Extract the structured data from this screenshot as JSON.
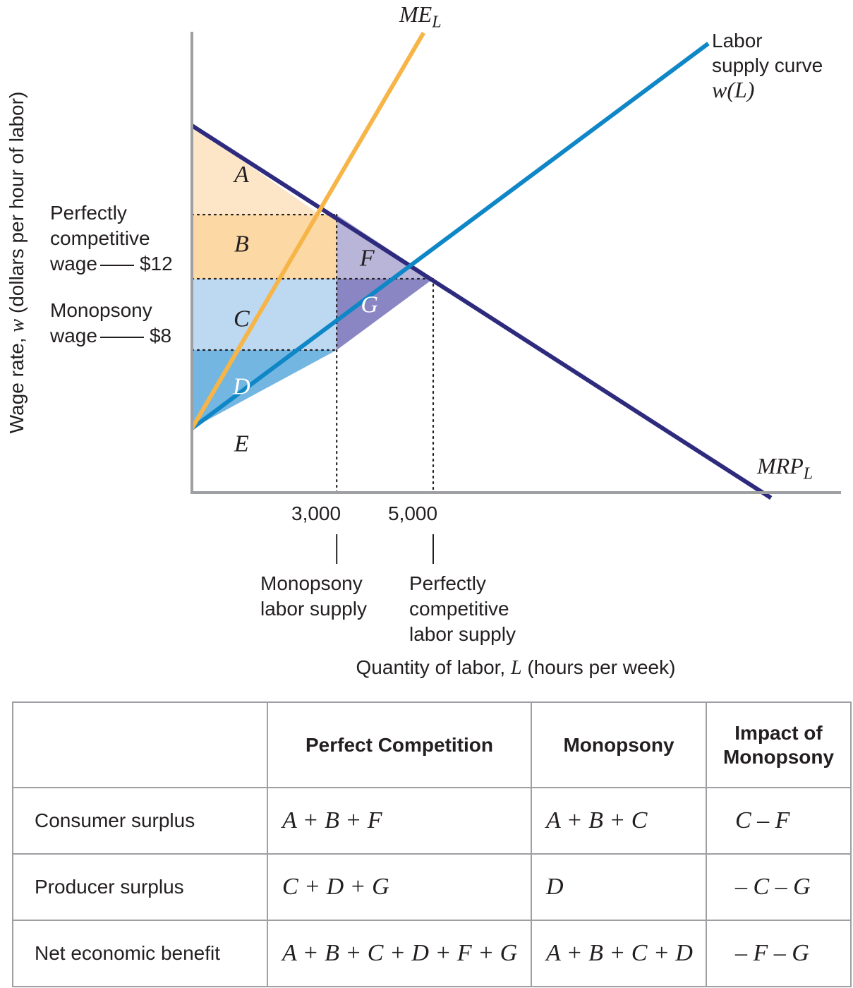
{
  "chart_data": {
    "type": "line",
    "title": "",
    "xlabel": "Quantity of labor, L (hours per week)",
    "ylabel": "Wage rate, w (dollars per hour of labor)",
    "xlabel_parts": {
      "pre": "Quantity of labor, ",
      "var": "L",
      "post": " (hours per week)"
    },
    "ylabel_parts": {
      "pre": "Wage rate, ",
      "var": "w",
      "post": " (dollars per hour of labor)"
    },
    "xlim": [
      0,
      13000
    ],
    "ylim": [
      0,
      20
    ],
    "x_ticks": [
      {
        "value": 3000,
        "label": "3,000",
        "note": [
          "Monopsony",
          "labor supply"
        ]
      },
      {
        "value": 5000,
        "label": "5,000",
        "note": [
          "Perfectly",
          "competitive",
          "labor supply"
        ]
      }
    ],
    "y_ticks": [
      {
        "value": 12,
        "label": "$12",
        "note": [
          "Perfectly",
          "competitive",
          "wage"
        ]
      },
      {
        "value": 8,
        "label": "$8",
        "note": [
          "Monopsony",
          "wage"
        ]
      }
    ],
    "series": [
      {
        "name": "MRP_L",
        "label_main": "MRP",
        "label_sub": "L",
        "color": "#2e2a7e",
        "points": [
          [
            0,
            20.6
          ],
          [
            12000,
            -0.3
          ]
        ]
      },
      {
        "name": "Labor supply curve w(L)",
        "label_lines": [
          "Labor",
          "supply curve"
        ],
        "label_func": "w(L)",
        "color": "#0f87c7",
        "points": [
          [
            0,
            3.6
          ],
          [
            10700,
            25.2
          ]
        ]
      },
      {
        "name": "ME_L",
        "label_main": "ME",
        "label_sub": "L",
        "color": "#f7b548",
        "points": [
          [
            0,
            3.6
          ],
          [
            4800,
            25.8
          ]
        ]
      }
    ],
    "regions": [
      {
        "label": "A",
        "color": "#fde6c8",
        "text_color": "#231f20",
        "points": [
          [
            0,
            20.6
          ],
          [
            2650,
            15.6
          ],
          [
            0,
            15.6
          ]
        ],
        "label_at": [
          1000,
          17.9
        ]
      },
      {
        "label": "B",
        "color": "#fcd8a4",
        "text_color": "#231f20",
        "points": [
          [
            0,
            15.6
          ],
          [
            2650,
            15.6
          ],
          [
            3000,
            15.6
          ],
          [
            3000,
            12
          ],
          [
            0,
            12
          ]
        ],
        "label_at": [
          1000,
          14.0
        ]
      },
      {
        "label": "C",
        "color": "#bcd9f1",
        "text_color": "#231f20",
        "points": [
          [
            0,
            12
          ],
          [
            3000,
            12
          ],
          [
            3000,
            8
          ],
          [
            0,
            8
          ]
        ],
        "label_at": [
          1000,
          9.8
        ]
      },
      {
        "label": "D",
        "color": "#74b6e2",
        "text_color": "#ffffff",
        "points": [
          [
            0,
            8
          ],
          [
            3000,
            8
          ],
          [
            0,
            3.6
          ]
        ],
        "label_at": [
          1000,
          6.0
        ]
      },
      {
        "label": "F",
        "color": "#b8b5d9",
        "text_color": "#231f20",
        "points": [
          [
            3000,
            15.6
          ],
          [
            5000,
            12
          ],
          [
            3000,
            12
          ]
        ],
        "label_at": [
          3600,
          13.2
        ]
      },
      {
        "label": "G",
        "color": "#8a86c3",
        "text_color": "#ffffff",
        "points": [
          [
            3000,
            12
          ],
          [
            5000,
            12
          ],
          [
            3000,
            8
          ]
        ],
        "label_at": [
          3650,
          10.6
        ]
      },
      {
        "label": "E",
        "color": "none",
        "text_color": "#231f20",
        "points": [],
        "label_at": [
          1000,
          2.8
        ]
      }
    ],
    "guides": [
      {
        "from": [
          0,
          15.6
        ],
        "to": [
          3000,
          15.6
        ]
      },
      {
        "from": [
          0,
          12
        ],
        "to": [
          5000,
          12
        ]
      },
      {
        "from": [
          0,
          8
        ],
        "to": [
          3000,
          8
        ]
      },
      {
        "from": [
          3000,
          15.6
        ],
        "to": [
          3000,
          0
        ]
      },
      {
        "from": [
          5000,
          12
        ],
        "to": [
          5000,
          0
        ]
      }
    ],
    "grid": false,
    "legend": "none"
  },
  "table": {
    "headers": [
      "",
      "Perfect Competition",
      "Monopsony",
      "Impact of Monopsony"
    ],
    "rows": [
      {
        "label": "Consumer surplus",
        "perfect": "A + B + F",
        "monopsony": "A + B + C",
        "impact": "C – F"
      },
      {
        "label": "Producer surplus",
        "perfect": "C + D + G",
        "monopsony": "D",
        "impact": "– C – G"
      },
      {
        "label": "Net economic benefit",
        "perfect": "A + B + C + D + F + G",
        "monopsony": "A + B + C + D",
        "impact": "– F – G"
      }
    ]
  }
}
